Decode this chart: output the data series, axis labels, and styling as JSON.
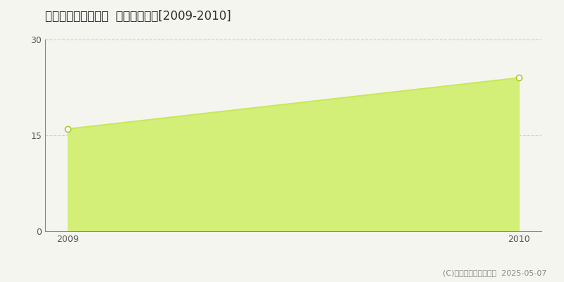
{
  "title": "泉南郡熊取町七山西  土地価格推移[2009-2010]",
  "years": [
    2009,
    2010
  ],
  "values": [
    16.0,
    24.0
  ],
  "ylim": [
    0,
    30
  ],
  "yticks": [
    0,
    15,
    30
  ],
  "line_color": "#c8e85a",
  "fill_color": "#d4ef78",
  "marker_facecolor": "#ffffff",
  "marker_edgecolor": "#aac830",
  "grid_color": "#cccccc",
  "background_color": "#f5f5f0",
  "plot_bg_color": "#f5f5f0",
  "copyright_text": "(C)土地価格ドットコム  2025-05-07",
  "title_fontsize": 12,
  "tick_fontsize": 9,
  "legend_fontsize": 9,
  "axis_color": "#888888"
}
